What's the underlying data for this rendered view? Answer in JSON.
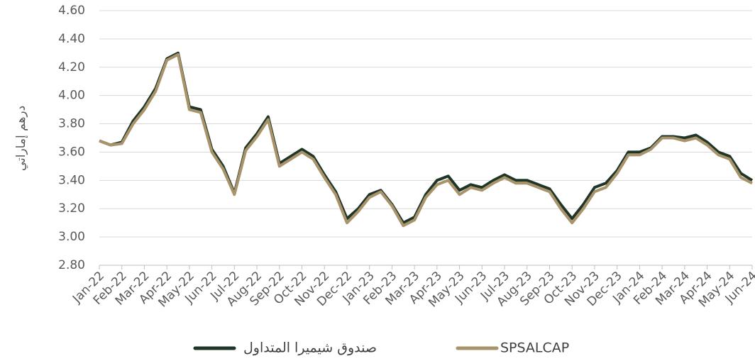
{
  "chart_data": {
    "type": "line",
    "y_label": "درهم إماراتي",
    "categories": [
      "Jan-22",
      null,
      "Feb-22",
      null,
      "Mar-22",
      null,
      "Apr-22",
      null,
      "May-22",
      null,
      "Jun-22",
      null,
      "Jul-22",
      null,
      "Aug-22",
      null,
      "Sep-22",
      null,
      "Oct-22",
      null,
      "Nov-22",
      null,
      "Dec-22",
      null,
      "Jan-23",
      null,
      "Feb-23",
      null,
      "Mar-23",
      null,
      "Apr-23",
      null,
      "May-23",
      null,
      "Jun-23",
      null,
      "Jul-23",
      null,
      "Aug-23",
      null,
      "Sep-23",
      null,
      "Oct-23",
      null,
      "Nov-23",
      null,
      "Dec-23",
      null,
      "Jan-24",
      null,
      "Feb-24",
      null,
      "Mar-24",
      null,
      "Apr-24",
      null,
      "May-24",
      null,
      "Jun-24"
    ],
    "series": [
      {
        "name": "صندوق شيميرا المتداول",
        "color": "#1e3528",
        "values": [
          3.68,
          3.65,
          3.67,
          3.82,
          3.92,
          4.05,
          4.26,
          4.3,
          3.92,
          3.9,
          3.62,
          3.5,
          3.31,
          3.63,
          3.73,
          3.85,
          3.52,
          3.57,
          3.62,
          3.57,
          3.44,
          3.32,
          3.13,
          3.2,
          3.3,
          3.33,
          3.23,
          3.1,
          3.14,
          3.3,
          3.4,
          3.43,
          3.33,
          3.37,
          3.35,
          3.4,
          3.44,
          3.4,
          3.4,
          3.37,
          3.34,
          3.23,
          3.13,
          3.23,
          3.35,
          3.38,
          3.47,
          3.6,
          3.6,
          3.63,
          3.71,
          3.71,
          3.7,
          3.72,
          3.67,
          3.6,
          3.57,
          3.45,
          3.4
        ]
      },
      {
        "name": "SPSALCAP",
        "color": "#a8936a",
        "values": [
          3.68,
          3.65,
          3.66,
          3.8,
          3.9,
          4.03,
          4.25,
          4.29,
          3.9,
          3.88,
          3.6,
          3.48,
          3.3,
          3.61,
          3.71,
          3.83,
          3.5,
          3.55,
          3.6,
          3.55,
          3.42,
          3.3,
          3.1,
          3.18,
          3.28,
          3.32,
          3.22,
          3.08,
          3.12,
          3.28,
          3.37,
          3.4,
          3.3,
          3.35,
          3.33,
          3.38,
          3.42,
          3.38,
          3.38,
          3.35,
          3.32,
          3.2,
          3.1,
          3.2,
          3.32,
          3.35,
          3.45,
          3.58,
          3.58,
          3.62,
          3.7,
          3.7,
          3.68,
          3.7,
          3.65,
          3.58,
          3.55,
          3.42,
          3.38
        ]
      }
    ],
    "ylim": [
      2.8,
      4.6
    ],
    "yticks": [
      {
        "value": 2.8,
        "label": "2.80"
      },
      {
        "value": 3.0,
        "label": "3.00"
      },
      {
        "value": 3.2,
        "label": "3.20"
      },
      {
        "value": 3.4,
        "label": "3.40"
      },
      {
        "value": 3.6,
        "label": "3.60"
      },
      {
        "value": 3.8,
        "label": "3.80"
      },
      {
        "value": 4.0,
        "label": "4.00"
      },
      {
        "value": 4.2,
        "label": "4.20"
      },
      {
        "value": 4.4,
        "label": "4.40"
      },
      {
        "value": 4.6,
        "label": "4.60"
      }
    ],
    "grid": true,
    "legend": "bottom"
  }
}
